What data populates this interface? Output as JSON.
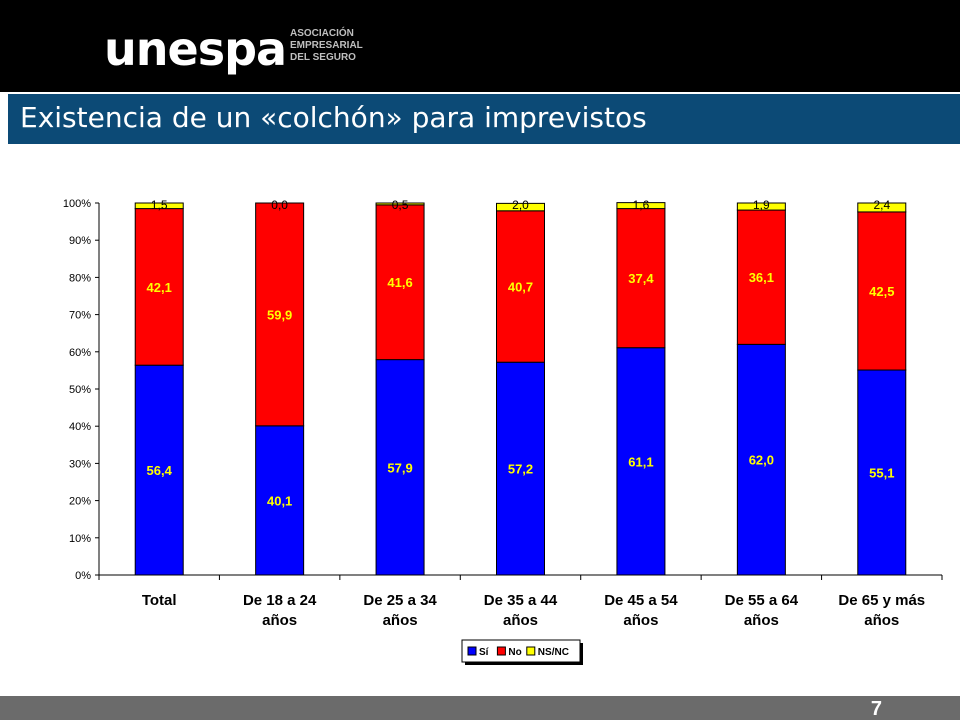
{
  "header": {
    "logo_text": "unespa",
    "logo_sub": [
      "ASOCIACIÓN",
      "EMPRESARIAL",
      "DEL SEGURO"
    ]
  },
  "slide": {
    "title": "Existencia de un «colchón» para imprevistos",
    "page_number": "7"
  },
  "colors": {
    "header_bg": "#000000",
    "title_bar": "#0c4a76",
    "footer": "#6b6b6b",
    "si": "#0000ff",
    "no": "#ff0000",
    "nsnc": "#ffff00"
  },
  "chart_data": {
    "type": "bar",
    "stacked": true,
    "categories": [
      [
        "Total"
      ],
      [
        "De 18 a 24",
        "años"
      ],
      [
        "De 25 a 34",
        "años"
      ],
      [
        "De 35 a 44",
        "años"
      ],
      [
        "De 45 a 54",
        "años"
      ],
      [
        "De 55 a 64",
        "años"
      ],
      [
        "De 65 y más",
        "años"
      ]
    ],
    "series": [
      {
        "name": "Sí",
        "color": "#0000ff",
        "values": [
          56.4,
          40.1,
          57.9,
          57.2,
          61.1,
          62.0,
          55.1
        ],
        "labels": [
          "56,4",
          "40,1",
          "57,9",
          "57,2",
          "61,1",
          "62,0",
          "55,1"
        ]
      },
      {
        "name": "No",
        "color": "#ff0000",
        "values": [
          42.1,
          59.9,
          41.6,
          40.7,
          37.4,
          36.1,
          42.5
        ],
        "labels": [
          "42,1",
          "59,9",
          "41,6",
          "40,7",
          "37,4",
          "36,1",
          "42,5"
        ]
      },
      {
        "name": "NS/NC",
        "color": "#ffff00",
        "values": [
          1.5,
          0.0,
          0.5,
          2.0,
          1.6,
          1.9,
          2.4
        ],
        "labels": [
          "1,5",
          "0,0",
          "0,5",
          "2,0",
          "1,6",
          "1,9",
          "2,4"
        ]
      }
    ],
    "yticks": [
      "0%",
      "10%",
      "20%",
      "30%",
      "40%",
      "50%",
      "60%",
      "70%",
      "80%",
      "90%",
      "100%"
    ],
    "ylim": [
      0,
      100
    ],
    "legend_position": "bottom-center",
    "grid": false
  }
}
